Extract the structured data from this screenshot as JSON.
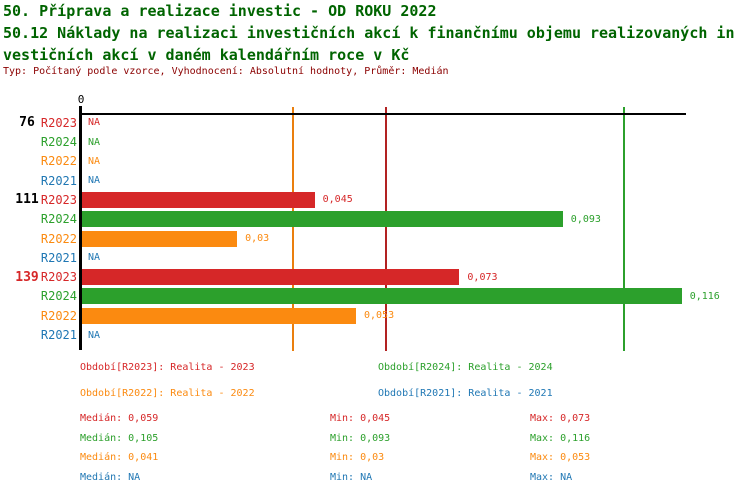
{
  "header": {
    "title_line1": "50. Příprava a realizace investic - OD ROKU 2022",
    "title_line2": "50.12 Náklady na realizaci investičních akcí k finančnímu objemu realizovaných in",
    "title_line3": "vestičních akcí v daném kalendářním roce v Kč",
    "meta": "Typ: Počítaný podle vzorce, Vyhodnocení: Absolutní hodnoty, Průměr: Medián"
  },
  "colors": {
    "title_green": "#006400",
    "meta_dark_red": "#8b0000",
    "axis_black": "#000000",
    "R2023": "#d62728",
    "R2024": "#2ca02c",
    "R2022": "#fb8a10",
    "R2021": "#1f77b4",
    "median_R2023": "#b22222",
    "median_R2024": "#2ca02c",
    "median_R2022": "#ea7f0e",
    "group_highlight": "#d62728"
  },
  "chart_data": {
    "type": "bar",
    "orientation": "horizontal",
    "title": "50.12 Náklady na realizaci investičních akcí k finančnímu objemu realizovaných investičních akcí v daném kalendářním roce v Kč",
    "xlabel": "",
    "ylabel": "",
    "xlim": [
      0,
      0.117
    ],
    "axis_zero_label": "0",
    "grid": "median-lines-only",
    "legend_position": "bottom",
    "series_colors": {
      "R2023": "#d62728",
      "R2024": "#2ca02c",
      "R2022": "#fb8a10",
      "R2021": "#1f77b4"
    },
    "row_groups": [
      {
        "label": "76",
        "label_color": "#000000",
        "rows": [
          {
            "series": "R2023",
            "value": null,
            "display": "NA"
          },
          {
            "series": "R2024",
            "value": null,
            "display": "NA"
          },
          {
            "series": "R2022",
            "value": null,
            "display": "NA"
          },
          {
            "series": "R2021",
            "value": null,
            "display": "NA"
          }
        ]
      },
      {
        "label": "111",
        "label_color": "#000000",
        "rows": [
          {
            "series": "R2023",
            "value": 0.045,
            "display": "0,045"
          },
          {
            "series": "R2024",
            "value": 0.093,
            "display": "0,093"
          },
          {
            "series": "R2022",
            "value": 0.03,
            "display": "0,03"
          },
          {
            "series": "R2021",
            "value": null,
            "display": "NA"
          }
        ]
      },
      {
        "label": "139",
        "label_color": "#d62728",
        "rows": [
          {
            "series": "R2023",
            "value": 0.073,
            "display": "0,073"
          },
          {
            "series": "R2024",
            "value": 0.116,
            "display": "0,116"
          },
          {
            "series": "R2022",
            "value": 0.053,
            "display": "0,053"
          },
          {
            "series": "R2021",
            "value": null,
            "display": "NA"
          }
        ]
      }
    ],
    "median_lines": [
      {
        "series": "R2023",
        "value": 0.059,
        "color": "#b22222"
      },
      {
        "series": "R2024",
        "value": 0.105,
        "color": "#2ca02c"
      },
      {
        "series": "R2022",
        "value": 0.041,
        "color": "#ea7f0e"
      }
    ]
  },
  "legend": {
    "items": [
      {
        "series": "R2023",
        "text": "Období[R2023]: Realita - 2023"
      },
      {
        "series": "R2024",
        "text": "Období[R2024]: Realita - 2024"
      },
      {
        "series": "R2022",
        "text": "Období[R2022]: Realita - 2022"
      },
      {
        "series": "R2021",
        "text": "Období[R2021]: Realita - 2021"
      }
    ]
  },
  "stats": {
    "rows": [
      {
        "series": "R2023",
        "median": "Medián: 0,059",
        "min": "Min: 0,045",
        "max": "Max: 0,073"
      },
      {
        "series": "R2024",
        "median": "Medián: 0,105",
        "min": "Min: 0,093",
        "max": "Max: 0,116"
      },
      {
        "series": "R2022",
        "median": "Medián: 0,041",
        "min": "Min: 0,03",
        "max": "Max: 0,053"
      },
      {
        "series": "R2021",
        "median": "Medián: NA",
        "min": "Min: NA",
        "max": "Max: NA"
      }
    ]
  }
}
